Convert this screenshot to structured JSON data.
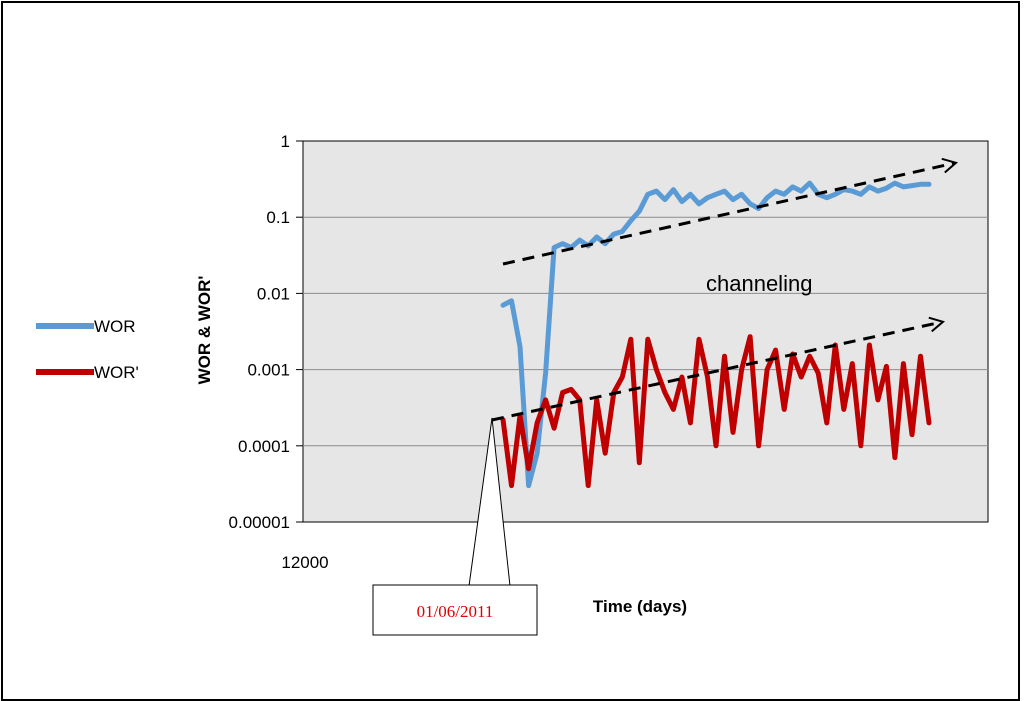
{
  "chart_data": {
    "type": "line",
    "title": "",
    "xlabel": "Time (days)",
    "ylabel": "WOR & WOR'",
    "y_scale": "log",
    "ylim": [
      1e-05,
      1
    ],
    "x_tick_labels": [
      "12000"
    ],
    "y_tick_labels": [
      "1",
      "0.1",
      "0.01",
      "0.001",
      "0.0001",
      "0.00001"
    ],
    "legend_position": "left",
    "grid": "horizontal",
    "plot_background": "#e6e6e6",
    "series": [
      {
        "name": "WOR",
        "color": "#5b9bd5",
        "x": [
          0,
          2,
          4,
          6,
          8,
          10,
          12,
          14,
          16,
          18,
          20,
          22,
          24,
          26,
          28,
          30,
          32,
          34,
          36,
          38,
          40,
          42,
          44,
          46,
          48,
          50,
          52,
          54,
          56,
          58,
          60,
          62,
          64,
          66,
          68,
          70,
          72,
          74,
          76,
          78,
          80,
          82,
          84,
          86,
          88,
          90,
          92,
          94,
          96,
          98,
          100
        ],
        "y": [
          0.007,
          0.008,
          0.002,
          3e-05,
          8e-05,
          0.0009,
          0.04,
          0.045,
          0.04,
          0.05,
          0.042,
          0.055,
          0.045,
          0.06,
          0.065,
          0.09,
          0.12,
          0.2,
          0.22,
          0.17,
          0.23,
          0.16,
          0.2,
          0.15,
          0.18,
          0.2,
          0.22,
          0.17,
          0.2,
          0.15,
          0.13,
          0.18,
          0.22,
          0.2,
          0.25,
          0.22,
          0.28,
          0.2,
          0.18,
          0.2,
          0.23,
          0.22,
          0.2,
          0.25,
          0.22,
          0.24,
          0.28,
          0.25,
          0.26,
          0.27,
          0.27
        ]
      },
      {
        "name": "WOR'",
        "color": "#c00000",
        "x": [
          0,
          2,
          4,
          6,
          8,
          10,
          12,
          14,
          16,
          18,
          20,
          22,
          24,
          26,
          28,
          30,
          32,
          34,
          36,
          38,
          40,
          42,
          44,
          46,
          48,
          50,
          52,
          54,
          56,
          58,
          60,
          62,
          64,
          66,
          68,
          70,
          72,
          74,
          76,
          78,
          80,
          82,
          84,
          86,
          88,
          90,
          92,
          94,
          96,
          98,
          100
        ],
        "y": [
          0.00022,
          3e-05,
          0.00025,
          5e-05,
          0.0002,
          0.0004,
          0.00017,
          0.0005,
          0.00055,
          0.0004,
          3e-05,
          0.0004,
          8e-05,
          0.0005,
          0.0008,
          0.0025,
          6e-05,
          0.0025,
          0.001,
          0.0005,
          0.0003,
          0.0008,
          0.0002,
          0.0025,
          0.0008,
          0.0001,
          0.0015,
          0.00015,
          0.001,
          0.0027,
          0.0001,
          0.001,
          0.0018,
          0.0003,
          0.0016,
          0.0008,
          0.0015,
          0.0009,
          0.0002,
          0.0021,
          0.0003,
          0.0012,
          0.0001,
          0.0021,
          0.0004,
          0.0011,
          7e-05,
          0.0012,
          0.00014,
          0.0015,
          0.0002
        ]
      }
    ],
    "annotations": {
      "channeling": "channeling",
      "date_callout": "01/06/2011"
    }
  }
}
